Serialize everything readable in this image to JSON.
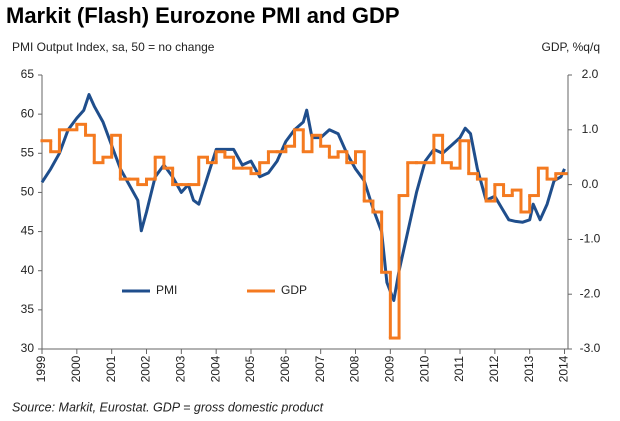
{
  "chart_data": {
    "type": "line",
    "title": "Markit (Flash) Eurozone PMI and GDP",
    "subtitle": "PMI Output  Index, sa, 50 = no change",
    "y2_label": "GDP, %q/q",
    "source": "Source: Markit, Eurostat. GDP = gross domestic product",
    "xlim": [
      1999,
      2014.1
    ],
    "xticks": [
      1999,
      2000,
      2001,
      2002,
      2003,
      2004,
      2005,
      2006,
      2007,
      2008,
      2009,
      2010,
      2011,
      2012,
      2013,
      2014
    ],
    "ylim": [
      30,
      65
    ],
    "yticks": [
      30,
      35,
      40,
      45,
      50,
      55,
      60,
      65
    ],
    "y2lim": [
      -3,
      2
    ],
    "y2ticks": [
      {
        "value": -3,
        "label": "-3.0"
      },
      {
        "value": -2,
        "label": "-2.0"
      },
      {
        "value": -1,
        "label": "-1.0"
      },
      {
        "value": 0,
        "label": "0.0"
      },
      {
        "value": 1,
        "label": "1.0"
      },
      {
        "value": 2,
        "label": "2.0"
      }
    ],
    "legend": "lower left",
    "series": [
      {
        "name": "PMI",
        "color": "#1f4e8c",
        "x": [
          1999.0,
          1999.25,
          1999.5,
          1999.75,
          2000.0,
          2000.2,
          2000.35,
          2000.5,
          2000.75,
          2001.0,
          2001.25,
          2001.5,
          2001.75,
          2001.85,
          2002.0,
          2002.25,
          2002.5,
          2002.75,
          2003.0,
          2003.2,
          2003.35,
          2003.5,
          2003.75,
          2004.0,
          2004.25,
          2004.5,
          2004.75,
          2005.0,
          2005.25,
          2005.5,
          2005.75,
          2006.0,
          2006.25,
          2006.5,
          2006.6,
          2006.75,
          2007.0,
          2007.25,
          2007.5,
          2007.75,
          2008.0,
          2008.25,
          2008.5,
          2008.75,
          2008.9,
          2009.1,
          2009.25,
          2009.5,
          2009.75,
          2010.0,
          2010.25,
          2010.5,
          2010.75,
          2011.0,
          2011.15,
          2011.3,
          2011.5,
          2011.75,
          2012.0,
          2012.2,
          2012.4,
          2012.6,
          2012.8,
          2013.0,
          2013.1,
          2013.3,
          2013.5,
          2013.7,
          2013.9,
          2014.0
        ],
        "values": [
          51.3,
          53,
          55,
          58,
          59.5,
          60.5,
          62.5,
          61,
          59,
          56,
          53,
          51,
          49,
          45.1,
          47.5,
          52,
          53.5,
          52,
          50,
          51,
          49,
          48.5,
          52,
          55.5,
          55.5,
          55.5,
          53.5,
          54,
          52,
          52.5,
          54,
          56.5,
          58,
          59,
          60.5,
          57,
          57,
          58,
          57.5,
          55,
          53,
          51.5,
          48,
          45,
          38.5,
          36.2,
          40,
          45,
          50,
          54,
          55.5,
          55,
          56,
          57,
          58.2,
          57.5,
          53,
          49,
          49.5,
          48,
          46.5,
          46.3,
          46.2,
          46.5,
          48.5,
          46.5,
          48.5,
          51.5,
          52,
          53
        ]
      },
      {
        "name": "GDP",
        "color": "#f47a20",
        "axis": "y2",
        "x": [
          1999.0,
          1999.25,
          1999.5,
          1999.75,
          2000.0,
          2000.25,
          2000.5,
          2000.75,
          2001.0,
          2001.25,
          2001.5,
          2001.75,
          2002.0,
          2002.25,
          2002.5,
          2002.75,
          2003.0,
          2003.25,
          2003.5,
          2003.75,
          2004.0,
          2004.25,
          2004.5,
          2004.75,
          2005.0,
          2005.25,
          2005.5,
          2005.75,
          2006.0,
          2006.25,
          2006.5,
          2006.75,
          2007.0,
          2007.25,
          2007.5,
          2007.75,
          2008.0,
          2008.25,
          2008.5,
          2008.75,
          2009.0,
          2009.25,
          2009.5,
          2009.75,
          2010.0,
          2010.25,
          2010.5,
          2010.75,
          2011.0,
          2011.25,
          2011.5,
          2011.75,
          2012.0,
          2012.25,
          2012.5,
          2012.75,
          2013.0,
          2013.25,
          2013.5,
          2013.75
        ],
        "values": [
          0.8,
          0.6,
          1.0,
          1.0,
          1.1,
          0.9,
          0.4,
          0.5,
          0.9,
          0.1,
          0.1,
          0.0,
          0.1,
          0.5,
          0.3,
          0.0,
          0.0,
          0.0,
          0.5,
          0.4,
          0.6,
          0.5,
          0.3,
          0.3,
          0.2,
          0.4,
          0.6,
          0.6,
          0.7,
          1.0,
          0.6,
          0.9,
          0.7,
          0.5,
          0.6,
          0.4,
          0.6,
          -0.3,
          -0.5,
          -1.6,
          -2.8,
          -0.2,
          0.4,
          0.4,
          0.4,
          0.9,
          0.4,
          0.3,
          0.8,
          0.2,
          0.1,
          -0.3,
          0.0,
          -0.2,
          -0.1,
          -0.5,
          -0.2,
          0.3,
          0.1,
          0.2
        ]
      }
    ]
  }
}
